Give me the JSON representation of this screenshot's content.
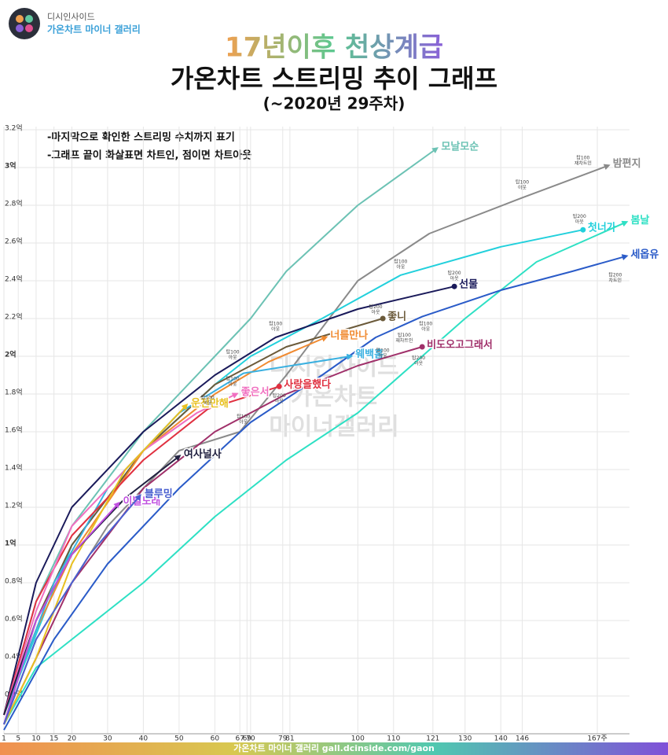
{
  "header": {
    "site": "디시인사이드",
    "gallery": "가온차트 마이너 갤러리"
  },
  "footer": "가온차트 마이너 갤러리 gall.dcinside.com/gaon",
  "watermark": [
    "디시인사이드",
    "가온차트",
    "마이너갤러리"
  ],
  "chart_data": {
    "type": "line",
    "title": "17년이후 천상계급",
    "subtitle": "가온차트 스트리밍 추이 그래프",
    "period": "(~2020년 29주차)",
    "legend_notes": [
      "-마지막으로 확인한 스트리밍 수치까지 표기",
      "-그래프 끝이 화살표면 차트인, 점이면 차트아웃"
    ],
    "xlim": [
      1,
      176
    ],
    "ylim": [
      0,
      3.25
    ],
    "grid": true,
    "xticks": [
      1,
      5,
      10,
      15,
      20,
      30,
      40,
      50,
      60,
      67,
      69,
      70,
      79,
      81,
      100,
      110,
      121,
      130,
      140,
      146,
      {
        "value": 167,
        "label": "167주"
      }
    ],
    "xtick_colors": [
      "#333",
      "#333",
      "#333",
      "#333",
      "#333",
      "#333",
      "#333",
      "#333",
      "#e02020",
      "#3a70d0",
      "#3a70d0",
      "#3a70d0",
      "#333",
      "#e02020",
      "#333",
      "#333",
      "#d0208a",
      "#333",
      "#333",
      "#999",
      "#22c8d8"
    ],
    "yticks": [
      {
        "value": 0.2,
        "label": "0.2억"
      },
      {
        "value": 0.4,
        "label": "0.4억"
      },
      {
        "value": 0.6,
        "label": "0.6억"
      },
      {
        "value": 0.8,
        "label": "0.8억"
      },
      {
        "value": 1,
        "label": "1억"
      },
      {
        "value": 1.2,
        "label": "1.2억"
      },
      {
        "value": 1.4,
        "label": "1.4억"
      },
      {
        "value": 1.6,
        "label": "1.6억"
      },
      {
        "value": 1.8,
        "label": "1.8억"
      },
      {
        "value": 2,
        "label": "2억"
      },
      {
        "value": 2.2,
        "label": "2.2억"
      },
      {
        "value": 2.4,
        "label": "2.4억"
      },
      {
        "value": 2.6,
        "label": "2.6억"
      },
      {
        "value": 2.8,
        "label": "2.8억"
      },
      {
        "value": 3,
        "label": "3억"
      },
      {
        "value": 3.2,
        "label": "3.2억"
      }
    ],
    "ytick_colors": [
      "#333",
      "#333",
      "#333",
      "#333",
      "#e02020",
      "#333",
      "#333",
      "#333",
      "#333",
      "#e02020",
      "#333",
      "#333",
      "#333",
      "#333",
      "#e02020",
      "#333"
    ],
    "series": [
      {
        "name": "모날모순",
        "color": "#6cc2b4",
        "end": "arrow",
        "x": [
          1,
          10,
          20,
          40,
          60,
          70,
          80,
          100,
          122
        ],
        "values": [
          0.1,
          0.7,
          1.1,
          1.6,
          2.0,
          2.2,
          2.45,
          2.8,
          3.1
        ]
      },
      {
        "name": "밤편지",
        "color": "#8a8a8a",
        "end": "arrow",
        "x": [
          1,
          10,
          30,
          50,
          67,
          80,
          100,
          120,
          146,
          163,
          170
        ],
        "values": [
          0.05,
          0.5,
          1.1,
          1.5,
          1.6,
          1.9,
          2.4,
          2.65,
          2.84,
          2.96,
          3.01
        ]
      },
      {
        "name": "첫너가",
        "color": "#22d0dc",
        "end": "dot",
        "x": [
          1,
          20,
          40,
          60,
          70,
          90,
          112,
          140,
          163
        ],
        "values": [
          0.1,
          1.0,
          1.5,
          1.85,
          2.0,
          2.2,
          2.43,
          2.58,
          2.67
        ]
      },
      {
        "name": "봄날",
        "color": "#2ee0c4",
        "end": "arrow",
        "x": [
          1,
          10,
          20,
          30,
          40,
          60,
          80,
          100,
          115,
          130,
          150,
          175
        ],
        "values": [
          0.05,
          0.35,
          0.5,
          0.65,
          0.8,
          1.15,
          1.45,
          1.7,
          1.95,
          2.2,
          2.5,
          2.71
        ]
      },
      {
        "name": "세옵유",
        "color": "#2a5bc8",
        "end": "arrow",
        "x": [
          1,
          15,
          30,
          50,
          70,
          90,
          105,
          118,
          140,
          160,
          175
        ],
        "values": [
          0.02,
          0.5,
          0.9,
          1.3,
          1.65,
          1.9,
          2.1,
          2.21,
          2.35,
          2.45,
          2.53
        ]
      },
      {
        "name": "선물",
        "color": "#1a1a5a",
        "end": "dot",
        "x": [
          1,
          10,
          20,
          40,
          60,
          77,
          100,
          127
        ],
        "values": [
          0.1,
          0.8,
          1.2,
          1.6,
          1.9,
          2.1,
          2.25,
          2.37
        ]
      },
      {
        "name": "좋니",
        "color": "#6b5a3a",
        "end": "dot",
        "x": [
          1,
          10,
          20,
          40,
          60,
          80,
          107
        ],
        "values": [
          0.05,
          0.6,
          1.0,
          1.5,
          1.85,
          2.05,
          2.2
        ]
      },
      {
        "name": "너를만나",
        "color": "#f08a30",
        "end": "arrow",
        "x": [
          1,
          10,
          20,
          40,
          60,
          75,
          91
        ],
        "values": [
          0.1,
          0.55,
          0.95,
          1.5,
          1.8,
          1.97,
          2.1
        ]
      },
      {
        "name": "웨백홈",
        "color": "#3ab0e0",
        "end": "arrow",
        "x": [
          1,
          15,
          30,
          50,
          68,
          98
        ],
        "values": [
          0.1,
          0.8,
          1.3,
          1.7,
          1.91,
          2.0
        ]
      },
      {
        "name": "비도오고그래서",
        "color": "#a0306a",
        "end": "dot",
        "x": [
          1,
          10,
          20,
          40,
          60,
          80,
          100,
          118
        ],
        "values": [
          0.05,
          0.4,
          0.8,
          1.3,
          1.6,
          1.8,
          1.95,
          2.05
        ]
      },
      {
        "name": "사랑을했다",
        "color": "#e03040",
        "end": "dot",
        "x": [
          1,
          10,
          20,
          40,
          58,
          78
        ],
        "values": [
          0.1,
          0.7,
          1.05,
          1.45,
          1.72,
          1.84
        ]
      },
      {
        "name": "좋은서",
        "color": "#f070c0",
        "end": "arrow",
        "x": [
          1,
          10,
          20,
          40,
          55,
          66
        ],
        "values": [
          0.1,
          0.65,
          1.1,
          1.5,
          1.7,
          1.8
        ]
      },
      {
        "name": "운전만해",
        "color": "#e8c020",
        "end": "arrow",
        "x": [
          1,
          10,
          20,
          35,
          52
        ],
        "values": [
          0.05,
          0.4,
          0.9,
          1.4,
          1.74
        ]
      },
      {
        "name": "여사널사",
        "color": "#202040",
        "end": "arrow",
        "x": [
          1,
          10,
          20,
          35,
          50
        ],
        "values": [
          0.1,
          0.6,
          0.95,
          1.25,
          1.47
        ]
      },
      {
        "name": "이별노래",
        "color": "#c050e0",
        "end": "arrow",
        "x": [
          1,
          10,
          20,
          33
        ],
        "values": [
          0.05,
          0.6,
          0.95,
          1.22
        ]
      },
      {
        "name": "블루밍",
        "color": "#4a60d0",
        "end": "arrow",
        "x": [
          1,
          10,
          25,
          39
        ],
        "values": [
          0.05,
          0.5,
          0.95,
          1.26
        ]
      }
    ],
    "annotations": [
      {
        "x": 146,
        "y": 2.92,
        "lines": [
          "탑100",
          "아웃"
        ]
      },
      {
        "x": 163,
        "y": 3.05,
        "lines": [
          "탑100",
          "재차트인"
        ]
      },
      {
        "x": 162,
        "y": 2.74,
        "lines": [
          "탑200",
          "아웃"
        ]
      },
      {
        "x": 112,
        "y": 2.5,
        "lines": [
          "탑100",
          "아웃"
        ]
      },
      {
        "x": 127,
        "y": 2.44,
        "lines": [
          "탑200",
          "아웃"
        ]
      },
      {
        "x": 172,
        "y": 2.43,
        "lines": [
          "탑200",
          "차트인"
        ]
      },
      {
        "x": 77,
        "y": 2.17,
        "lines": [
          "탑100",
          "아웃"
        ]
      },
      {
        "x": 105,
        "y": 2.26,
        "lines": [
          "탑200",
          "아웃"
        ]
      },
      {
        "x": 113,
        "y": 2.11,
        "lines": [
          "탑100",
          "재차트인"
        ]
      },
      {
        "x": 119,
        "y": 2.17,
        "lines": [
          "탑100",
          "아웃"
        ]
      },
      {
        "x": 107,
        "y": 2.03,
        "lines": [
          "탑100",
          "아웃"
        ]
      },
      {
        "x": 117,
        "y": 1.99,
        "lines": [
          "탑200",
          "아웃"
        ]
      },
      {
        "x": 65,
        "y": 2.02,
        "lines": [
          "탑100",
          "아웃"
        ]
      },
      {
        "x": 65,
        "y": 1.88,
        "lines": [
          "탑100",
          "아웃"
        ]
      },
      {
        "x": 58,
        "y": 1.78,
        "lines": [
          "탑100",
          "아웃"
        ]
      },
      {
        "x": 68,
        "y": 1.68,
        "lines": [
          "탑100",
          "아웃"
        ]
      },
      {
        "x": 78,
        "y": 1.79,
        "lines": [
          "탑200",
          "아웃"
        ]
      }
    ]
  }
}
